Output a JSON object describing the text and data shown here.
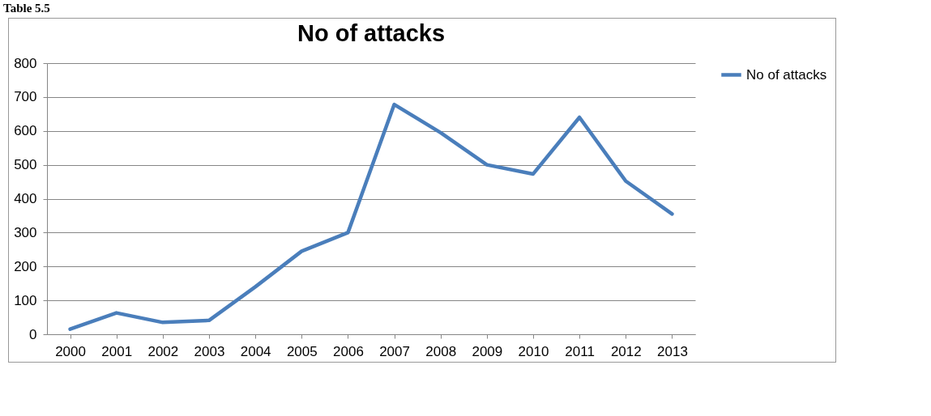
{
  "chart_data": {
    "type": "line",
    "title": "No of attacks",
    "annotations": [
      "Table 5.5"
    ],
    "categories": [
      "2000",
      "2001",
      "2002",
      "2003",
      "2004",
      "2005",
      "2006",
      "2007",
      "2008",
      "2009",
      "2010",
      "2011",
      "2012",
      "2013"
    ],
    "series": [
      {
        "name": "No of attacks",
        "color": "#4a7ebb",
        "values": [
          15,
          63,
          35,
          41,
          140,
          245,
          300,
          678,
          595,
          500,
          473,
          640,
          452,
          355
        ]
      }
    ],
    "ylim": [
      0,
      800
    ],
    "yticks": [
      0,
      100,
      200,
      300,
      400,
      500,
      600,
      700,
      800
    ],
    "grid": "y",
    "legend": "right",
    "marker": "none",
    "line_style": "solid"
  }
}
